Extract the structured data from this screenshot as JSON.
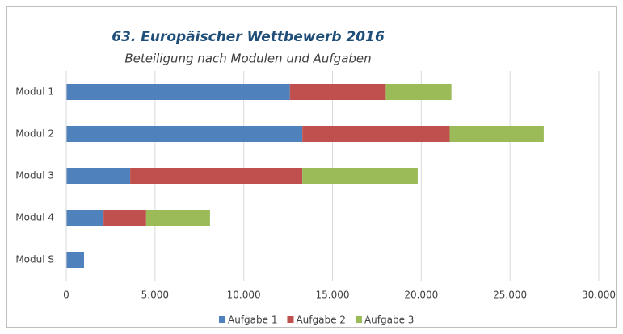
{
  "chart_data": {
    "type": "stacked-barh",
    "title": "63. Europäischer Wettbewerb 2016",
    "subtitle": "Beteiligung nach Modulen und Aufgaben",
    "categories": [
      "Modul 1",
      "Modul 2",
      "Modul 3",
      "Modul 4",
      "Modul S"
    ],
    "series": [
      {
        "name": "Aufgabe 1",
        "color": "#4f81bd",
        "values": [
          12600,
          13300,
          3600,
          2100,
          1000
        ]
      },
      {
        "name": "Aufgabe 2",
        "color": "#c0504d",
        "values": [
          5400,
          8300,
          9700,
          2400,
          null
        ]
      },
      {
        "name": "Aufgabe 3",
        "color": "#9bbb59",
        "values": [
          3700,
          5300,
          6500,
          3600,
          null
        ]
      }
    ],
    "xlim": [
      0,
      30000
    ],
    "xticks": [
      0,
      {
        "value": 5000,
        "label": "5.000"
      },
      {
        "value": 10000,
        "label": "10.000"
      },
      {
        "value": 15000,
        "label": "15.000"
      },
      {
        "value": 20000,
        "label": "20.000"
      },
      {
        "value": 25000,
        "label": "25.000"
      },
      {
        "value": 30000,
        "label": "30.000"
      }
    ],
    "grid": true,
    "legend": "bottom"
  }
}
